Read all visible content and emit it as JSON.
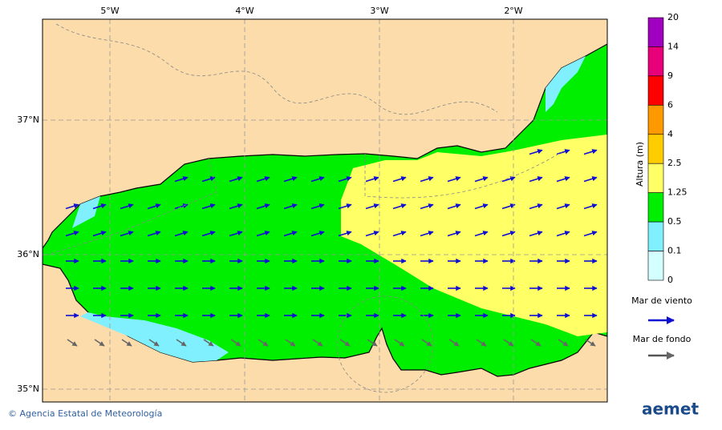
{
  "map": {
    "lon_labels": [
      "5°W",
      "4°W",
      "3°W",
      "2°W"
    ],
    "lat_labels": [
      "37°N",
      "36°N",
      "35°N"
    ],
    "colorbar": {
      "title": "Altura (m)",
      "levels": [
        20,
        14,
        9,
        6,
        4,
        2.5,
        1.25,
        0.5,
        0.1,
        0
      ],
      "colors": [
        "#a000c0",
        "#e8007a",
        "#ff0000",
        "#ff9900",
        "#ffcc00",
        "#ffff66",
        "#00ee00",
        "#80f0ff",
        "#d4ffff"
      ]
    },
    "legend": {
      "wind_sea": "Mar de viento",
      "swell": "Mar de fondo"
    },
    "credit": "© Agencia Estatal de Meteorología",
    "logo": "aemet"
  }
}
